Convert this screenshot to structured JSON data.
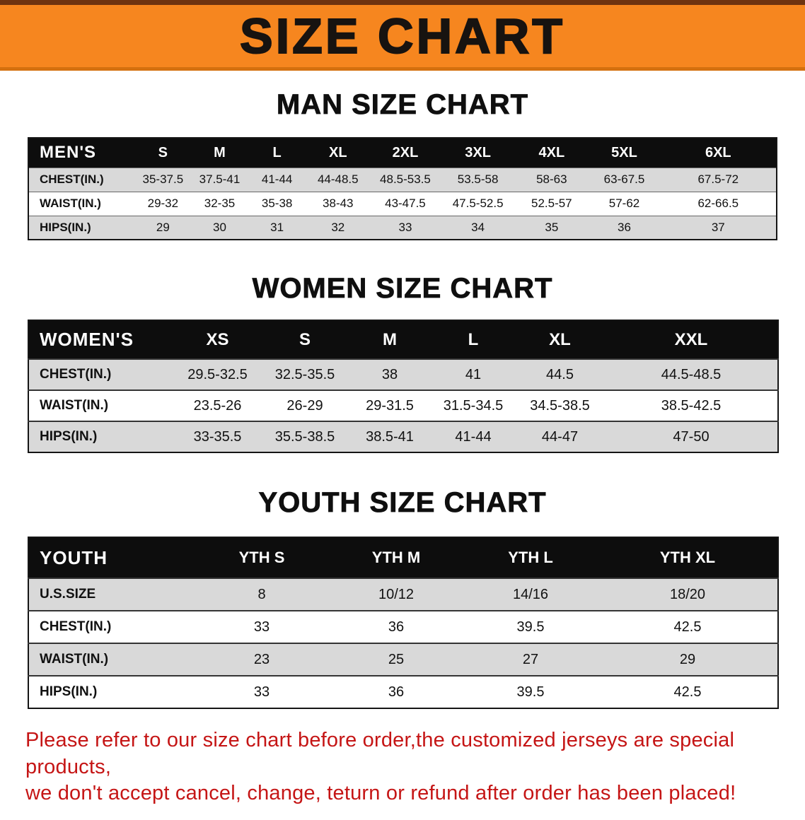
{
  "banner": {
    "title": "SIZE CHART",
    "bg_color": "#f6861f"
  },
  "sections": [
    {
      "heading": "MAN SIZE CHART",
      "table": {
        "label": "MEN'S",
        "columns": [
          "S",
          "M",
          "L",
          "XL",
          "2XL",
          "3XL",
          "4XL",
          "5XL",
          "6XL"
        ],
        "rows": [
          {
            "label": "CHEST(IN.)",
            "values": [
              "35-37.5",
              "37.5-41",
              "41-44",
              "44-48.5",
              "48.5-53.5",
              "53.5-58",
              "58-63",
              "63-67.5",
              "67.5-72"
            ]
          },
          {
            "label": "WAIST(IN.)",
            "values": [
              "29-32",
              "32-35",
              "35-38",
              "38-43",
              "43-47.5",
              "47.5-52.5",
              "52.5-57",
              "57-62",
              "62-66.5"
            ]
          },
          {
            "label": "HIPS(IN.)",
            "values": [
              "29",
              "30",
              "31",
              "32",
              "33",
              "34",
              "35",
              "36",
              "37"
            ]
          }
        ]
      }
    },
    {
      "heading": "WOMEN SIZE CHART",
      "table": {
        "label": "WOMEN'S",
        "columns": [
          "XS",
          "S",
          "M",
          "L",
          "XL",
          "XXL"
        ],
        "rows": [
          {
            "label": "CHEST(IN.)",
            "values": [
              "29.5-32.5",
              "32.5-35.5",
              "38",
              "41",
              "44.5",
              "44.5-48.5"
            ]
          },
          {
            "label": "WAIST(IN.)",
            "values": [
              "23.5-26",
              "26-29",
              "29-31.5",
              "31.5-34.5",
              "34.5-38.5",
              "38.5-42.5"
            ]
          },
          {
            "label": "HIPS(IN.)",
            "values": [
              "33-35.5",
              "35.5-38.5",
              "38.5-41",
              "41-44",
              "44-47",
              "47-50"
            ]
          }
        ]
      }
    },
    {
      "heading": "YOUTH SIZE CHART",
      "table": {
        "label": "YOUTH",
        "columns": [
          "YTH S",
          "YTH M",
          "YTH L",
          "YTH XL"
        ],
        "rows": [
          {
            "label": "U.S.SIZE",
            "values": [
              "8",
              "10/12",
              "14/16",
              "18/20"
            ]
          },
          {
            "label": "CHEST(IN.)",
            "values": [
              "33",
              "36",
              "39.5",
              "42.5"
            ]
          },
          {
            "label": "WAIST(IN.)",
            "values": [
              "23",
              "25",
              "27",
              "29"
            ]
          },
          {
            "label": "HIPS(IN.)",
            "values": [
              "33",
              "36",
              "39.5",
              "42.5"
            ]
          }
        ]
      }
    }
  ],
  "footer": {
    "line1": "Please refer to our size chart before order,the customized jerseys are special products,",
    "line2": "we don't accept cancel, change, teturn or refund after order has been placed!",
    "color": "#c51515"
  }
}
